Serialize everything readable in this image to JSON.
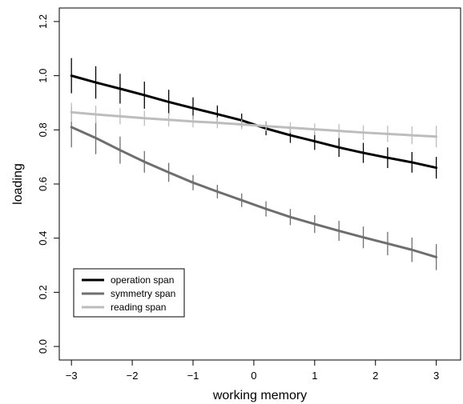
{
  "chart_data": {
    "type": "line",
    "xlabel": "working memory",
    "ylabel": "loading",
    "xlim": [
      -3.2,
      3.4
    ],
    "ylim": [
      -0.05,
      1.25
    ],
    "xticks": [
      "−3",
      "−2",
      "−1",
      "0",
      "1",
      "2",
      "3"
    ],
    "xtick_values": [
      -3,
      -2,
      -1,
      0,
      1,
      2,
      3
    ],
    "yticks": [
      "0.0",
      "0.2",
      "0.4",
      "0.6",
      "0.8",
      "1.0",
      "1.2"
    ],
    "ytick_values": [
      0,
      0.2,
      0.4,
      0.6,
      0.8,
      1.0,
      1.2
    ],
    "grid": false,
    "legend_position": "bottom-left",
    "series": [
      {
        "name": "operation span",
        "color": "#000000",
        "x": [
          -3,
          -2.6,
          -2.2,
          -1.8,
          -1.4,
          -1.0,
          -0.6,
          -0.2,
          0.2,
          0.6,
          1.0,
          1.4,
          1.8,
          2.2,
          2.6,
          3.0
        ],
        "y": [
          1.0,
          0.975,
          0.952,
          0.928,
          0.903,
          0.88,
          0.858,
          0.835,
          0.805,
          0.78,
          0.758,
          0.735,
          0.715,
          0.697,
          0.68,
          0.66
        ],
        "err": [
          0.065,
          0.06,
          0.055,
          0.05,
          0.045,
          0.04,
          0.032,
          0.025,
          0.025,
          0.028,
          0.032,
          0.035,
          0.037,
          0.038,
          0.038,
          0.04
        ]
      },
      {
        "name": "symmetry span",
        "color": "#6e6e6e",
        "x": [
          -3,
          -2.6,
          -2.2,
          -1.8,
          -1.4,
          -1.0,
          -0.6,
          -0.2,
          0.2,
          0.6,
          1.0,
          1.4,
          1.8,
          2.2,
          2.6,
          3.0
        ],
        "y": [
          0.81,
          0.77,
          0.725,
          0.682,
          0.643,
          0.605,
          0.572,
          0.54,
          0.508,
          0.478,
          0.452,
          0.427,
          0.403,
          0.38,
          0.357,
          0.33
        ],
        "err": [
          0.075,
          0.06,
          0.05,
          0.04,
          0.035,
          0.028,
          0.025,
          0.025,
          0.028,
          0.03,
          0.033,
          0.037,
          0.04,
          0.043,
          0.045,
          0.048
        ]
      },
      {
        "name": "reading span",
        "color": "#bdbdbd",
        "x": [
          -3,
          -2.6,
          -2.2,
          -1.8,
          -1.4,
          -1.0,
          -0.6,
          -0.2,
          0.2,
          0.6,
          1.0,
          1.4,
          1.8,
          2.2,
          2.6,
          3.0
        ],
        "y": [
          0.865,
          0.857,
          0.85,
          0.843,
          0.837,
          0.831,
          0.826,
          0.82,
          0.814,
          0.808,
          0.802,
          0.796,
          0.79,
          0.785,
          0.78,
          0.775
        ],
        "err": [
          0.035,
          0.033,
          0.03,
          0.028,
          0.025,
          0.022,
          0.02,
          0.018,
          0.018,
          0.02,
          0.022,
          0.025,
          0.027,
          0.03,
          0.033,
          0.04
        ]
      }
    ]
  }
}
